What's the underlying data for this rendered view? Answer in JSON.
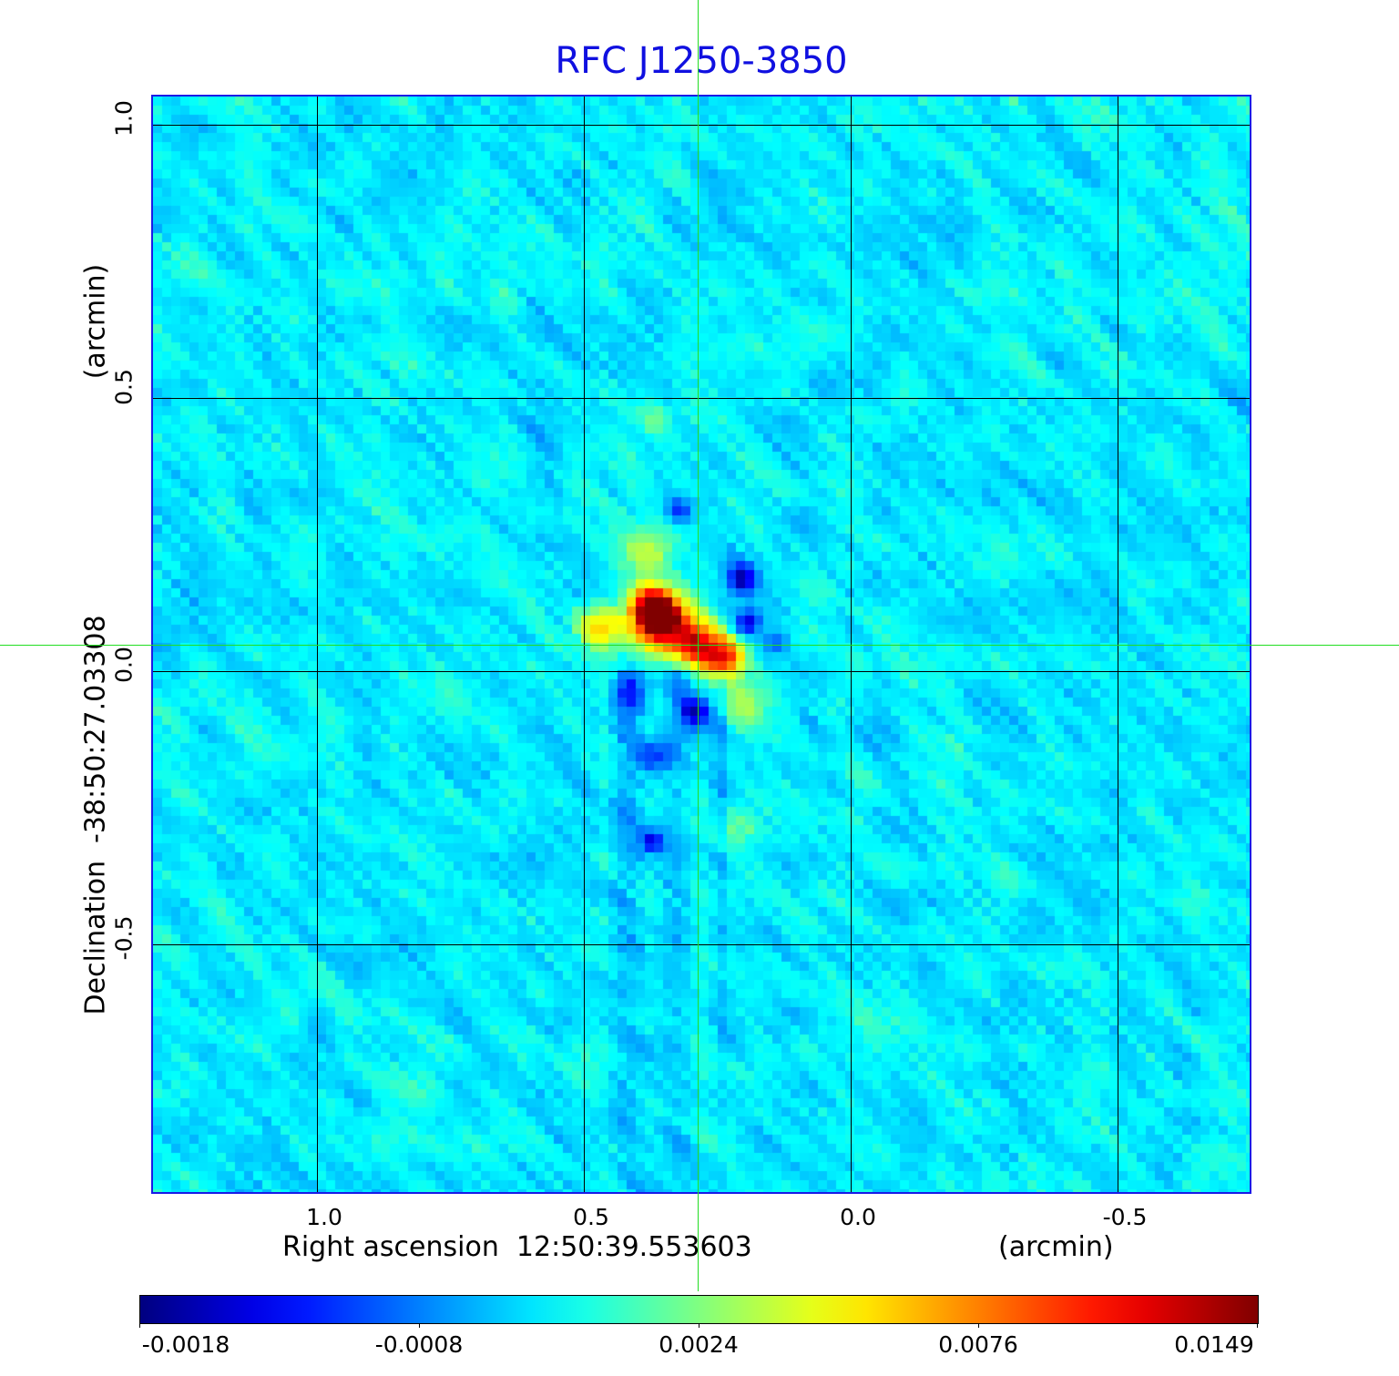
{
  "chart_data": {
    "type": "heatmap",
    "title": "RFC J1250-3850",
    "xlabel": "Right ascension  12:50:39.553603",
    "xunit": "(arcmin)",
    "ylabel": "Declination  -38:50:27.03308",
    "yunit": "(arcmin)",
    "xticks": [
      "1.0",
      "0.5",
      "0.0",
      "-0.5"
    ],
    "yticks": [
      "1.0",
      "0.5",
      "0.0",
      "-0.5"
    ],
    "xlim": [
      1.31,
      -0.75
    ],
    "ylim": [
      -0.95,
      1.06
    ],
    "grid": true,
    "colormap": "jet",
    "colorbar": {
      "ticks": [
        "-0.0018",
        "-0.0008",
        "0.0024",
        "0.0076",
        "0.0149"
      ],
      "range": [
        -0.0018,
        0.0149
      ],
      "placement": "bottom"
    },
    "crosshair_color": "#22dd22",
    "frame_color": "#1a1ae6",
    "title_color": "#1010e0"
  }
}
